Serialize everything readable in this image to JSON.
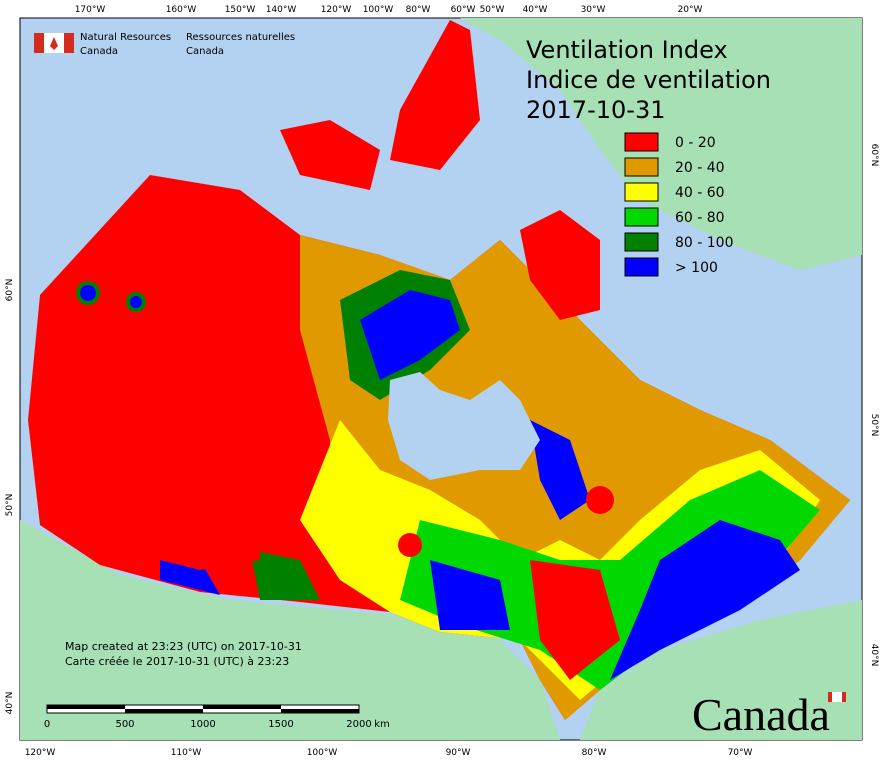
{
  "header": {
    "agency_en": "Natural Resources",
    "agency_en_2": "Canada",
    "agency_fr": "Ressources naturelles",
    "agency_fr_2": "Canada"
  },
  "title": {
    "line1": "Ventilation Index",
    "line2": "Indice de ventilation",
    "date": "2017-10-31"
  },
  "legend": [
    {
      "label": "0 - 20",
      "color": "#ff0000"
    },
    {
      "label": "20 - 40",
      "color": "#e09a00"
    },
    {
      "label": "40 - 60",
      "color": "#ffff00"
    },
    {
      "label": "60 - 80",
      "color": "#00d800"
    },
    {
      "label": "80 - 100",
      "color": "#008000"
    },
    {
      "label": "> 100",
      "color": "#0000ff"
    }
  ],
  "graticule": {
    "top": [
      "170°W",
      "160°W",
      "150°W",
      "140°W",
      "120°W",
      "100°W",
      "80°W",
      "60°W",
      "50°W",
      "40°W",
      "30°W",
      "20°W"
    ],
    "bottom": [
      "120°W",
      "110°W",
      "100°W",
      "90°W",
      "80°W",
      "70°W"
    ],
    "left": [
      "60°N",
      "50°N",
      "40°N"
    ],
    "right": [
      "60°N",
      "50°N",
      "40°N"
    ]
  },
  "footer": {
    "created_en": "Map created at 23:23 (UTC) on 2017-10-31",
    "created_fr": "Carte créée le 2017-10-31 (UTC) à 23:23"
  },
  "scale_bar": {
    "labels": [
      "0",
      "500",
      "1000",
      "1500",
      "2000",
      "km"
    ]
  },
  "wordmark": "Canada"
}
